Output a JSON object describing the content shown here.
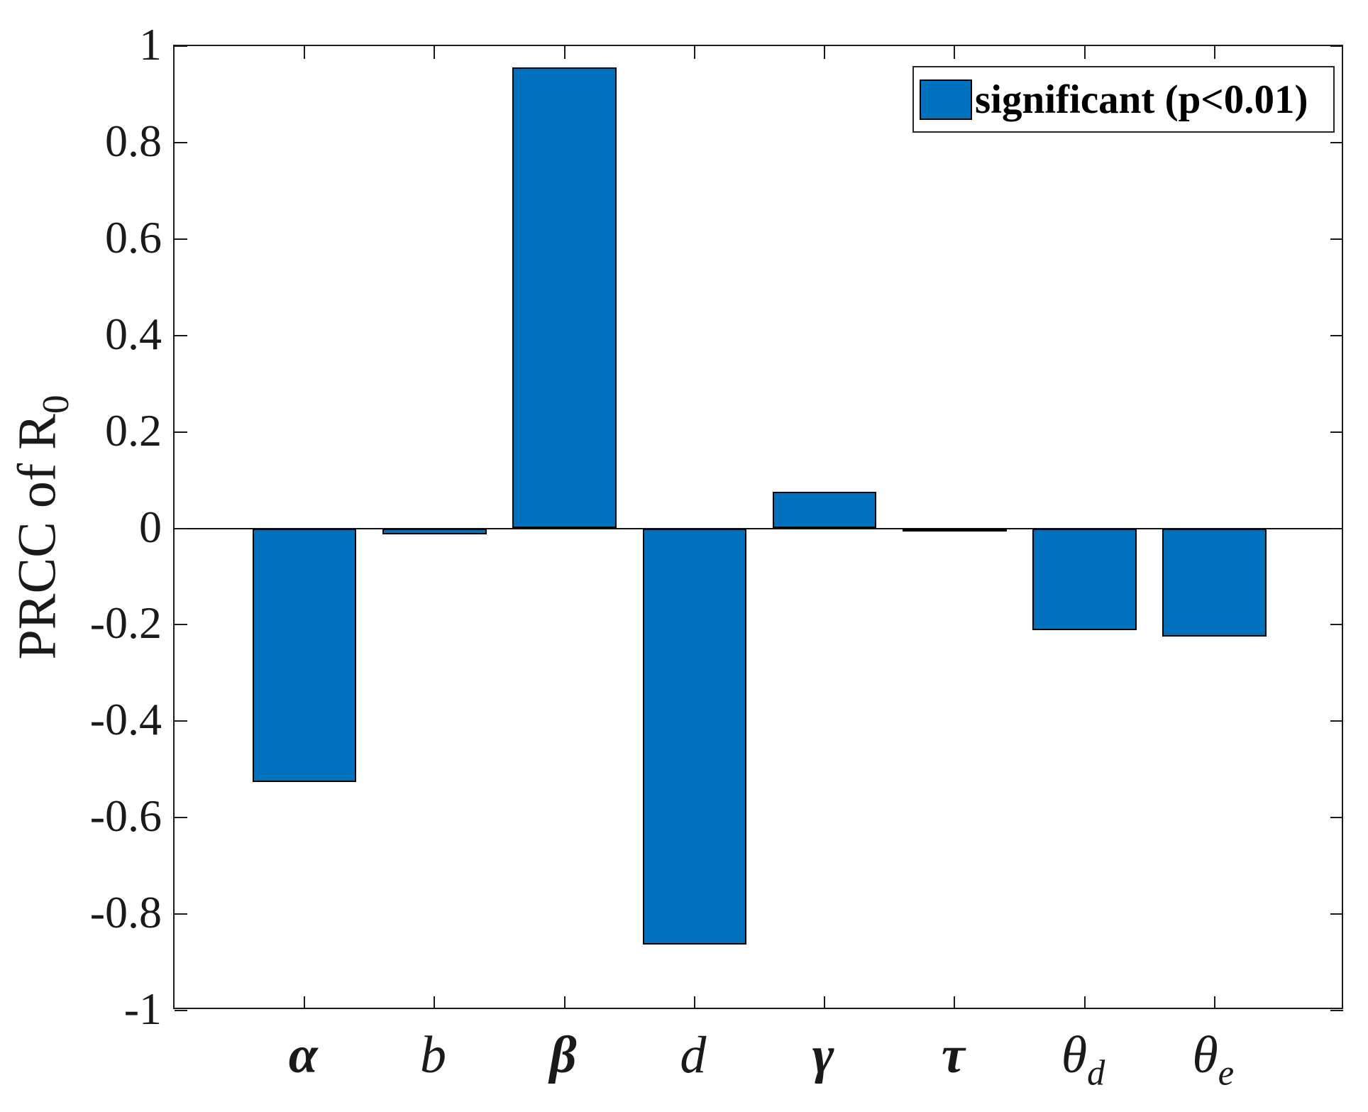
{
  "chart_data": {
    "type": "bar",
    "title": "",
    "ylabel_base": "PRCC of R",
    "ylabel_sub": "0",
    "xlabel": "",
    "categories": [
      {
        "base": "α",
        "sub": "",
        "bold": true
      },
      {
        "base": "b",
        "sub": "",
        "bold": false
      },
      {
        "base": "β",
        "sub": "",
        "bold": true
      },
      {
        "base": "d",
        "sub": "",
        "bold": false
      },
      {
        "base": "γ",
        "sub": "",
        "bold": true
      },
      {
        "base": "τ",
        "sub": "",
        "bold": true
      },
      {
        "base": "θ",
        "sub": "d",
        "bold": false
      },
      {
        "base": "θ",
        "sub": "e",
        "bold": false
      }
    ],
    "values": [
      -0.526,
      -0.012,
      0.956,
      -0.863,
      0.076,
      -0.007,
      -0.211,
      -0.225
    ],
    "ylim": [
      -1,
      1
    ],
    "ytick_step": 0.2,
    "ytick_labels": [
      "1",
      "0.8",
      "0.6",
      "0.4",
      "0.2",
      "0",
      "-0.2",
      "-0.4",
      "-0.6",
      "-0.8",
      "-1"
    ],
    "grid": false,
    "bar_width_fraction": 0.8,
    "legend": {
      "label": "significant (p<0.01)",
      "position": "top-right"
    },
    "colors": {
      "bar_fill": "#0072BD",
      "bar_edge": "#000000",
      "axis": "#1A1A1A",
      "background": "#FFFFFF"
    }
  }
}
